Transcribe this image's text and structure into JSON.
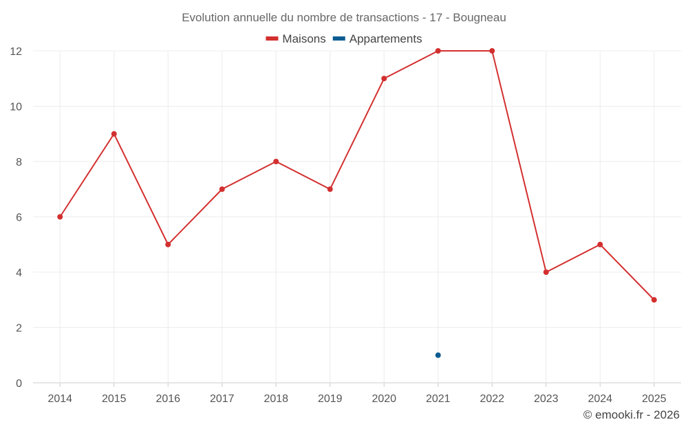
{
  "chart_data": {
    "type": "line",
    "title": "Evolution annuelle du nombre de transactions - 17 - Bougneau",
    "categories": [
      "2014",
      "2015",
      "2016",
      "2017",
      "2018",
      "2019",
      "2020",
      "2021",
      "2022",
      "2023",
      "2024",
      "2025"
    ],
    "ylim": [
      0,
      12
    ],
    "yticks": [
      0,
      2,
      4,
      6,
      8,
      10,
      12
    ],
    "grid": true,
    "legend_position": "top-center",
    "series": [
      {
        "name": "Maisons",
        "color": "#d32f2f",
        "values": [
          6,
          9,
          5,
          7,
          8,
          7,
          11,
          12,
          12,
          4,
          5,
          3
        ]
      },
      {
        "name": "Appartements",
        "color": "#0d5c91",
        "values": [
          null,
          null,
          null,
          null,
          null,
          null,
          null,
          1,
          null,
          null,
          null,
          null
        ]
      }
    ],
    "xlabel": "",
    "ylabel": ""
  },
  "credit": "© emooki.fr - 2026"
}
